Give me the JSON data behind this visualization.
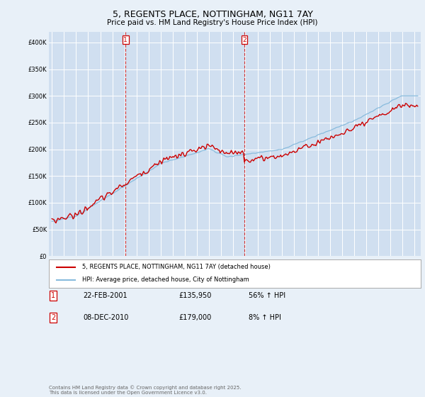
{
  "title": "5, REGENTS PLACE, NOTTINGHAM, NG11 7AY",
  "subtitle": "Price paid vs. HM Land Registry's House Price Index (HPI)",
  "title_fontsize": 9,
  "subtitle_fontsize": 7.5,
  "bg_color": "#e8f0f8",
  "plot_bg_color": "#d0dff0",
  "grid_color": "#ffffff",
  "red_color": "#cc0000",
  "blue_color": "#88bbdd",
  "legend1": "5, REGENTS PLACE, NOTTINGHAM, NG11 7AY (detached house)",
  "legend2": "HPI: Average price, detached house, City of Nottingham",
  "table_row1": [
    "1",
    "22-FEB-2001",
    "£135,950",
    "56% ↑ HPI"
  ],
  "table_row2": [
    "2",
    "08-DEC-2010",
    "£179,000",
    "8% ↑ HPI"
  ],
  "footer": "Contains HM Land Registry data © Crown copyright and database right 2025.\nThis data is licensed under the Open Government Licence v3.0.",
  "ylim": [
    0,
    420000
  ],
  "yticks": [
    0,
    50000,
    100000,
    150000,
    200000,
    250000,
    300000,
    350000,
    400000
  ],
  "ytick_labels": [
    "£0",
    "£50K",
    "£100K",
    "£150K",
    "£200K",
    "£250K",
    "£300K",
    "£350K",
    "£400K"
  ]
}
